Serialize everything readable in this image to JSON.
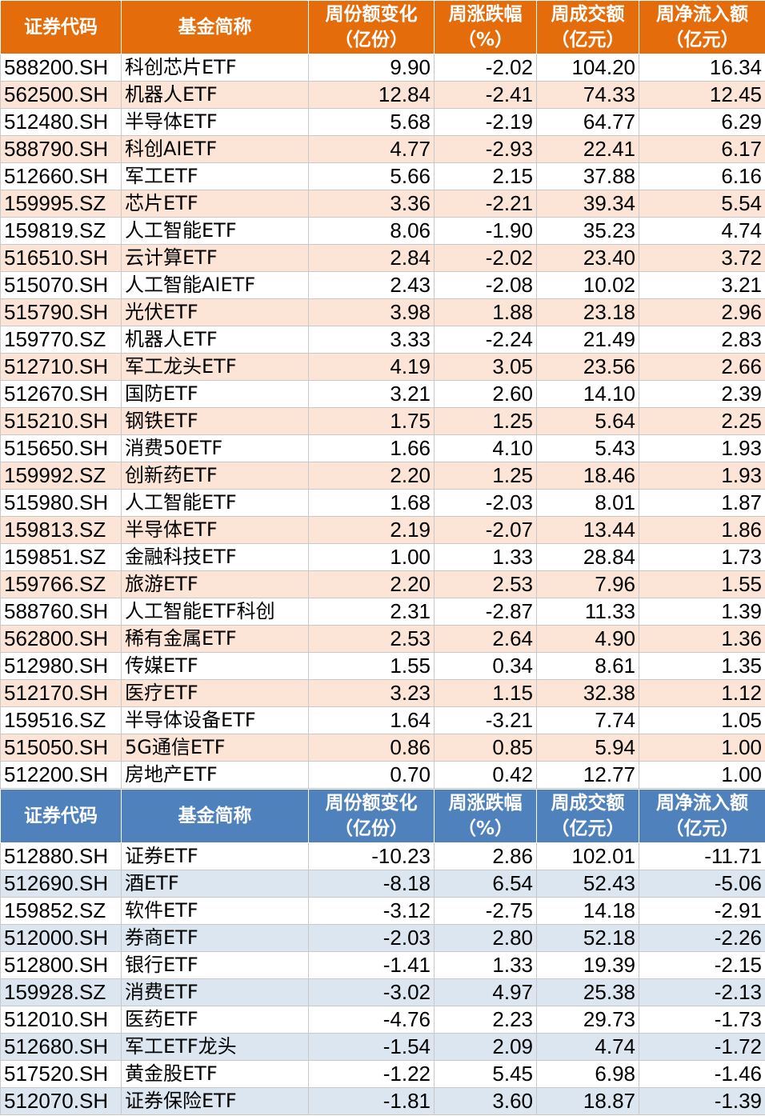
{
  "headers": {
    "code": "证券代码",
    "name": "基金简称",
    "share_change_l1": "周份额变化",
    "share_change_l2": "（亿份）",
    "pct_l1": "周涨跌幅",
    "pct_l2": "（%）",
    "turnover_l1": "周成交额",
    "turnover_l2": "（亿元）",
    "inflow_l1": "周净流入额",
    "inflow_l2": "（亿元）"
  },
  "inflow_table": {
    "rows": [
      {
        "code": "588200.SH",
        "name": "科创芯片ETF",
        "share_change": "9.90",
        "pct": "-2.02",
        "turnover": "104.20",
        "inflow": "16.34"
      },
      {
        "code": "562500.SH",
        "name": "机器人ETF",
        "share_change": "12.84",
        "pct": "-2.41",
        "turnover": "74.33",
        "inflow": "12.45"
      },
      {
        "code": "512480.SH",
        "name": "半导体ETF",
        "share_change": "5.68",
        "pct": "-2.19",
        "turnover": "64.77",
        "inflow": "6.29"
      },
      {
        "code": "588790.SH",
        "name": "科创AIETF",
        "share_change": "4.77",
        "pct": "-2.93",
        "turnover": "22.41",
        "inflow": "6.17"
      },
      {
        "code": "512660.SH",
        "name": "军工ETF",
        "share_change": "5.66",
        "pct": "2.15",
        "turnover": "37.88",
        "inflow": "6.16"
      },
      {
        "code": "159995.SZ",
        "name": "芯片ETF",
        "share_change": "3.36",
        "pct": "-2.21",
        "turnover": "39.34",
        "inflow": "5.54"
      },
      {
        "code": "159819.SZ",
        "name": "人工智能ETF",
        "share_change": "8.06",
        "pct": "-1.90",
        "turnover": "35.23",
        "inflow": "4.74"
      },
      {
        "code": "516510.SH",
        "name": "云计算ETF",
        "share_change": "2.84",
        "pct": "-2.02",
        "turnover": "23.40",
        "inflow": "3.72"
      },
      {
        "code": "515070.SH",
        "name": "人工智能AIETF",
        "share_change": "2.43",
        "pct": "-2.08",
        "turnover": "10.02",
        "inflow": "3.21"
      },
      {
        "code": "515790.SH",
        "name": "光伏ETF",
        "share_change": "3.98",
        "pct": "1.88",
        "turnover": "23.18",
        "inflow": "2.96"
      },
      {
        "code": "159770.SZ",
        "name": "机器人ETF",
        "share_change": "3.33",
        "pct": "-2.24",
        "turnover": "21.49",
        "inflow": "2.83"
      },
      {
        "code": "512710.SH",
        "name": "军工龙头ETF",
        "share_change": "4.19",
        "pct": "3.05",
        "turnover": "23.56",
        "inflow": "2.66"
      },
      {
        "code": "512670.SH",
        "name": "国防ETF",
        "share_change": "3.21",
        "pct": "2.60",
        "turnover": "14.10",
        "inflow": "2.39"
      },
      {
        "code": "515210.SH",
        "name": "钢铁ETF",
        "share_change": "1.75",
        "pct": "1.25",
        "turnover": "5.64",
        "inflow": "2.25"
      },
      {
        "code": "515650.SH",
        "name": "消费50ETF",
        "share_change": "1.66",
        "pct": "4.10",
        "turnover": "5.43",
        "inflow": "1.93"
      },
      {
        "code": "159992.SZ",
        "name": "创新药ETF",
        "share_change": "2.20",
        "pct": "1.25",
        "turnover": "18.46",
        "inflow": "1.93"
      },
      {
        "code": "515980.SH",
        "name": "人工智能ETF",
        "share_change": "1.68",
        "pct": "-2.03",
        "turnover": "8.01",
        "inflow": "1.87"
      },
      {
        "code": "159813.SZ",
        "name": "半导体ETF",
        "share_change": "2.19",
        "pct": "-2.07",
        "turnover": "13.44",
        "inflow": "1.86"
      },
      {
        "code": "159851.SZ",
        "name": "金融科技ETF",
        "share_change": "1.00",
        "pct": "1.33",
        "turnover": "28.84",
        "inflow": "1.73"
      },
      {
        "code": "159766.SZ",
        "name": "旅游ETF",
        "share_change": "2.20",
        "pct": "2.53",
        "turnover": "7.96",
        "inflow": "1.55"
      },
      {
        "code": "588760.SH",
        "name": "人工智能ETF科创",
        "share_change": "2.31",
        "pct": "-2.87",
        "turnover": "11.33",
        "inflow": "1.39"
      },
      {
        "code": "562800.SH",
        "name": "稀有金属ETF",
        "share_change": "2.53",
        "pct": "2.64",
        "turnover": "4.90",
        "inflow": "1.36"
      },
      {
        "code": "512980.SH",
        "name": "传媒ETF",
        "share_change": "1.55",
        "pct": "0.34",
        "turnover": "8.61",
        "inflow": "1.35"
      },
      {
        "code": "512170.SH",
        "name": "医疗ETF",
        "share_change": "3.23",
        "pct": "1.15",
        "turnover": "32.38",
        "inflow": "1.12"
      },
      {
        "code": "159516.SZ",
        "name": "半导体设备ETF",
        "share_change": "1.64",
        "pct": "-3.21",
        "turnover": "7.74",
        "inflow": "1.05"
      },
      {
        "code": "515050.SH",
        "name": "5G通信ETF",
        "share_change": "0.86",
        "pct": "0.85",
        "turnover": "5.94",
        "inflow": "1.00"
      },
      {
        "code": "512200.SH",
        "name": "房地产ETF",
        "share_change": "0.70",
        "pct": "0.42",
        "turnover": "12.77",
        "inflow": "1.00"
      }
    ]
  },
  "outflow_table": {
    "rows": [
      {
        "code": "512880.SH",
        "name": "证券ETF",
        "share_change": "-10.23",
        "pct": "2.86",
        "turnover": "102.01",
        "inflow": "-11.71"
      },
      {
        "code": "512690.SH",
        "name": "酒ETF",
        "share_change": "-8.18",
        "pct": "6.54",
        "turnover": "52.43",
        "inflow": "-5.06"
      },
      {
        "code": "159852.SZ",
        "name": "软件ETF",
        "share_change": "-3.12",
        "pct": "-2.75",
        "turnover": "14.18",
        "inflow": "-2.91"
      },
      {
        "code": "512000.SH",
        "name": "券商ETF",
        "share_change": "-2.03",
        "pct": "2.80",
        "turnover": "52.18",
        "inflow": "-2.26"
      },
      {
        "code": "512800.SH",
        "name": "银行ETF",
        "share_change": "-1.41",
        "pct": "1.33",
        "turnover": "19.39",
        "inflow": "-2.15"
      },
      {
        "code": "159928.SZ",
        "name": "消费ETF",
        "share_change": "-3.02",
        "pct": "4.97",
        "turnover": "25.38",
        "inflow": "-2.13"
      },
      {
        "code": "512010.SH",
        "name": "医药ETF",
        "share_change": "-4.76",
        "pct": "2.23",
        "turnover": "29.73",
        "inflow": "-1.73"
      },
      {
        "code": "512680.SH",
        "name": "军工ETF龙头",
        "share_change": "-1.54",
        "pct": "2.09",
        "turnover": "4.74",
        "inflow": "-1.72"
      },
      {
        "code": "517520.SH",
        "name": "黄金股ETF",
        "share_change": "-1.22",
        "pct": "5.45",
        "turnover": "6.98",
        "inflow": "-1.46"
      },
      {
        "code": "512070.SH",
        "name": "证券保险ETF",
        "share_change": "-1.81",
        "pct": "3.60",
        "turnover": "18.87",
        "inflow": "-1.39"
      }
    ]
  },
  "colors": {
    "orange_header": "#e46c0a",
    "orange_band": "#fce4d6",
    "blue_header": "#4f81bd",
    "blue_band": "#dce6f1"
  }
}
